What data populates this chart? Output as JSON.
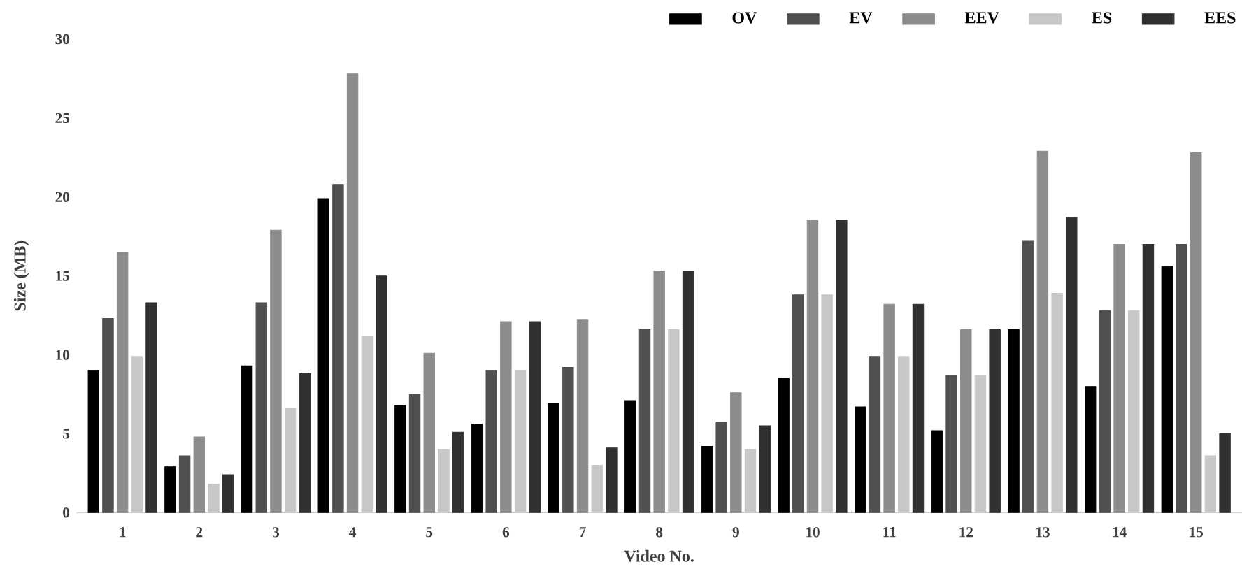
{
  "chart_data": {
    "type": "bar",
    "xlabel": "Video No.",
    "ylabel": "Size (MB)",
    "categories": [
      "1",
      "2",
      "3",
      "4",
      "5",
      "6",
      "7",
      "8",
      "9",
      "10",
      "11",
      "12",
      "13",
      "14",
      "15"
    ],
    "series": [
      {
        "name": "OV",
        "color": "#000000",
        "values": [
          9.0,
          2.9,
          9.3,
          19.9,
          6.8,
          5.6,
          6.9,
          7.1,
          4.2,
          8.5,
          6.7,
          5.2,
          11.6,
          8.0,
          15.6
        ]
      },
      {
        "name": "EV",
        "color": "#505050",
        "values": [
          12.3,
          3.6,
          13.3,
          20.8,
          7.5,
          9.0,
          9.2,
          11.6,
          5.7,
          13.8,
          9.9,
          8.7,
          17.2,
          12.8,
          17.0
        ]
      },
      {
        "name": "EEV",
        "color": "#8c8c8c",
        "values": [
          16.5,
          4.8,
          17.9,
          27.8,
          10.1,
          12.1,
          12.2,
          15.3,
          7.6,
          18.5,
          13.2,
          11.6,
          22.9,
          17.0,
          22.8
        ]
      },
      {
        "name": "ES",
        "color": "#c8c8c8",
        "values": [
          9.9,
          1.8,
          6.6,
          11.2,
          4.0,
          9.0,
          3.0,
          11.6,
          4.0,
          13.8,
          9.9,
          8.7,
          13.9,
          12.8,
          3.6
        ]
      },
      {
        "name": "EES",
        "color": "#303030",
        "values": [
          13.3,
          2.4,
          8.8,
          15.0,
          5.1,
          12.1,
          4.1,
          15.3,
          5.5,
          18.5,
          13.2,
          11.6,
          18.7,
          17.0,
          5.0
        ]
      }
    ],
    "ylim": [
      0,
      30
    ],
    "yticks": [
      0,
      5,
      10,
      15,
      20,
      25,
      30
    ],
    "legend": "top right"
  }
}
